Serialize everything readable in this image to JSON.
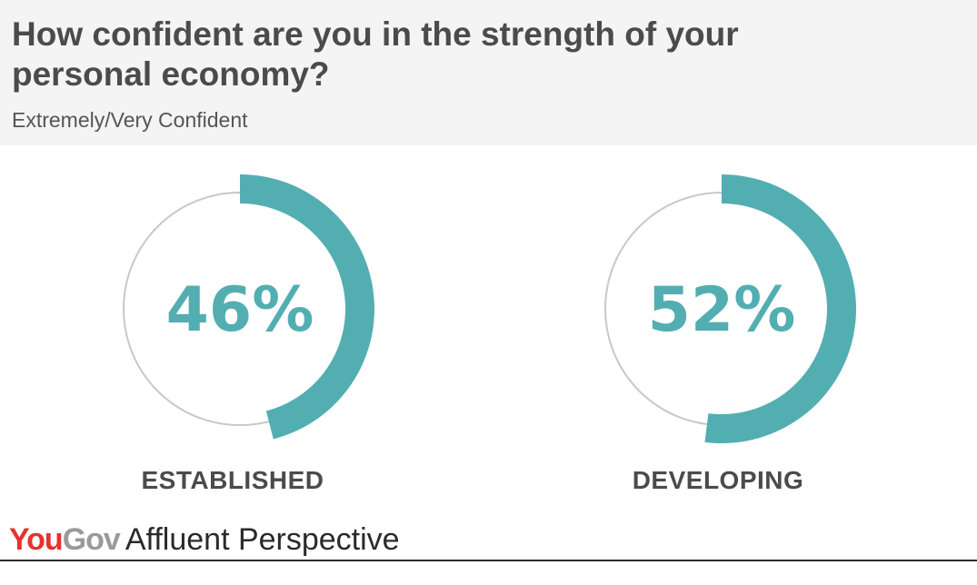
{
  "header": {
    "title": "How confident are you in the strength of your personal economy?",
    "subtitle": "Extremely/Very Confident"
  },
  "chart_data": {
    "type": "donut",
    "title": "How confident are you in the strength of your personal economy?",
    "subtitle": "Extremely/Very Confident",
    "unit": "%",
    "categories": [
      "ESTABLISHED",
      "DEVELOPING"
    ],
    "values": [
      46,
      52
    ],
    "display_values": [
      "46%",
      "52%"
    ],
    "max": 100,
    "colors": {
      "arc": "#53aeb2",
      "track": "#c8c8c8",
      "value_text": "#53aeb2"
    }
  },
  "footer": {
    "brand_part1": "You",
    "brand_part2": "Gov",
    "brand_rest": "Affluent Perspective",
    "brand_colors": {
      "you": "#e5322d",
      "gov": "#9a9a9a"
    }
  }
}
